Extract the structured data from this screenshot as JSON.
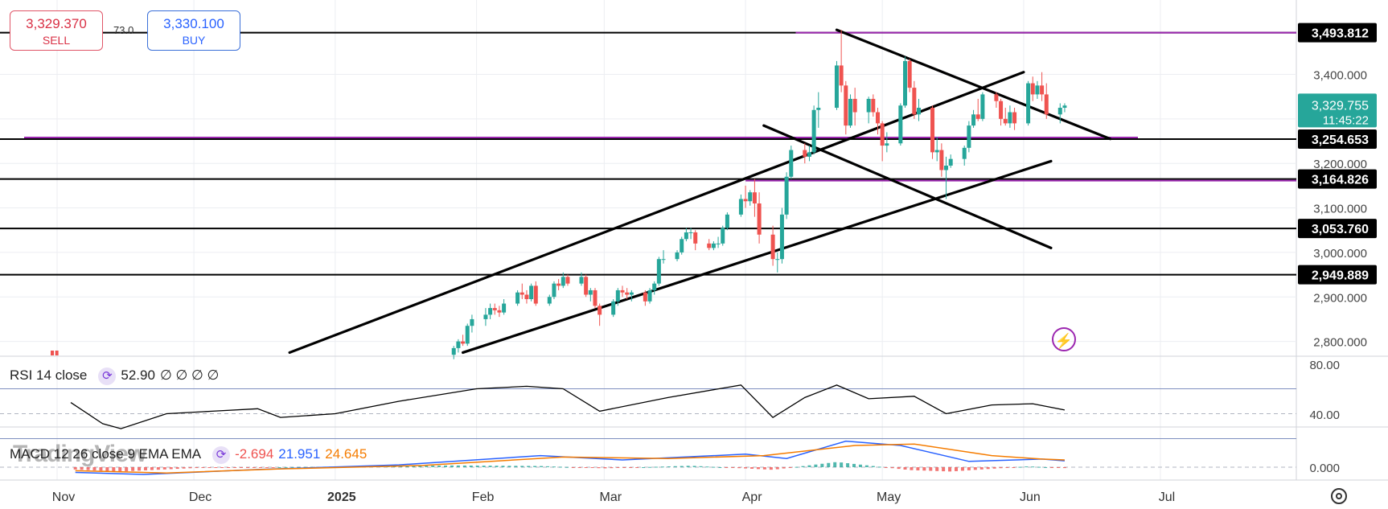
{
  "trade": {
    "sell_price": "3,329.370",
    "sell_label": "SELL",
    "buy_price": "3,330.100",
    "buy_label": "BUY",
    "spread": "73.0"
  },
  "colors": {
    "up": "#26a69a",
    "down": "#ef5350",
    "trendline": "#000000",
    "support": "#9c27b0",
    "rsi": "#000000",
    "macd": "#2962ff",
    "signal": "#f57c00"
  },
  "icons": [
    "cycle-icon",
    "lightning-icon",
    "settings-icon"
  ],
  "price_labels": [
    "3,493.812",
    "3,254.653",
    "3,164.826",
    "3,053.760",
    "2,949.889"
  ],
  "current": {
    "price": "3,329.755",
    "countdown": "11:45:22"
  },
  "rsi": {
    "label": "RSI 14 close",
    "value": "52.90",
    "placeholders": "∅ ∅ ∅ ∅",
    "axis": [
      "80.00",
      "40.00"
    ]
  },
  "macd": {
    "label": "MACD 12 26 close 9 EMA EMA",
    "hist": "-2.694",
    "macd": "21.951",
    "signal": "24.645",
    "axis": "0.000"
  },
  "watermark": "TradingView",
  "chart_data": {
    "type": "candlestick",
    "x": [
      "Nov",
      "Dec",
      "2025",
      "Feb",
      "Mar",
      "Apr",
      "May",
      "Jun",
      "Jul"
    ],
    "y_ticks": [
      3400,
      3300,
      3200,
      3100,
      3000,
      2900,
      2800
    ],
    "ylim": [
      2775,
      3525
    ],
    "horizontal_lines": [
      3493.812,
      3254.653,
      3164.826,
      3053.76,
      2949.889
    ],
    "grid": true,
    "ohlc": [
      [
        "2025-01-27",
        2770,
        2790,
        2760,
        2785
      ],
      [
        "2025-01-28",
        2785,
        2805,
        2775,
        2800
      ],
      [
        "2025-01-29",
        2800,
        2815,
        2790,
        2795
      ],
      [
        "2025-01-30",
        2795,
        2840,
        2790,
        2835
      ],
      [
        "2025-01-31",
        2835,
        2860,
        2820,
        2850
      ],
      [
        "2025-02-03",
        2850,
        2875,
        2835,
        2860
      ],
      [
        "2025-02-04",
        2860,
        2885,
        2850,
        2875
      ],
      [
        "2025-02-05",
        2875,
        2885,
        2860,
        2870
      ],
      [
        "2025-02-06",
        2870,
        2880,
        2855,
        2865
      ],
      [
        "2025-02-07",
        2865,
        2895,
        2860,
        2885
      ],
      [
        "2025-02-10",
        2885,
        2915,
        2880,
        2910
      ],
      [
        "2025-02-11",
        2910,
        2930,
        2895,
        2905
      ],
      [
        "2025-02-12",
        2905,
        2915,
        2885,
        2895
      ],
      [
        "2025-02-13",
        2895,
        2930,
        2890,
        2925
      ],
      [
        "2025-02-14",
        2925,
        2935,
        2880,
        2885
      ],
      [
        "2025-02-17",
        2885,
        2905,
        2880,
        2900
      ],
      [
        "2025-02-18",
        2900,
        2935,
        2895,
        2930
      ],
      [
        "2025-02-19",
        2930,
        2940,
        2915,
        2925
      ],
      [
        "2025-02-20",
        2925,
        2955,
        2920,
        2945
      ],
      [
        "2025-02-21",
        2945,
        2950,
        2925,
        2930
      ],
      [
        "2025-02-24",
        2930,
        2955,
        2925,
        2945
      ],
      [
        "2025-02-25",
        2945,
        2950,
        2900,
        2905
      ],
      [
        "2025-02-26",
        2905,
        2920,
        2890,
        2915
      ],
      [
        "2025-02-27",
        2915,
        2920,
        2875,
        2880
      ],
      [
        "2025-02-28",
        2880,
        2885,
        2835,
        2860
      ],
      [
        "2025-03-03",
        2860,
        2895,
        2855,
        2890
      ],
      [
        "2025-03-04",
        2890,
        2920,
        2880,
        2915
      ],
      [
        "2025-03-05",
        2915,
        2925,
        2900,
        2910
      ],
      [
        "2025-03-06",
        2910,
        2920,
        2895,
        2905
      ],
      [
        "2025-03-07",
        2905,
        2915,
        2890,
        2910
      ],
      [
        "2025-03-10",
        2910,
        2915,
        2880,
        2890
      ],
      [
        "2025-03-11",
        2890,
        2920,
        2885,
        2915
      ],
      [
        "2025-03-12",
        2915,
        2935,
        2905,
        2930
      ],
      [
        "2025-03-13",
        2930,
        2990,
        2925,
        2985
      ],
      [
        "2025-03-14",
        2985,
        3005,
        2975,
        2985
      ],
      [
        "2025-03-17",
        2985,
        3005,
        2980,
        3000
      ],
      [
        "2025-03-18",
        3000,
        3035,
        2995,
        3030
      ],
      [
        "2025-03-19",
        3030,
        3055,
        3025,
        3045
      ],
      [
        "2025-03-20",
        3045,
        3055,
        3030,
        3045
      ],
      [
        "2025-03-21",
        3045,
        3050,
        3005,
        3020
      ],
      [
        "2025-03-24",
        3020,
        3030,
        3005,
        3010
      ],
      [
        "2025-03-25",
        3010,
        3025,
        3005,
        3020
      ],
      [
        "2025-03-26",
        3020,
        3035,
        3010,
        3020
      ],
      [
        "2025-03-27",
        3020,
        3060,
        3015,
        3055
      ],
      [
        "2025-03-28",
        3055,
        3090,
        3050,
        3085
      ],
      [
        "2025-03-31",
        3085,
        3130,
        3080,
        3120
      ],
      [
        "2025-04-01",
        3120,
        3150,
        3100,
        3115
      ],
      [
        "2025-04-02",
        3115,
        3140,
        3105,
        3135
      ],
      [
        "2025-04-03",
        3135,
        3165,
        3080,
        3110
      ],
      [
        "2025-04-04",
        3110,
        3135,
        3020,
        3040
      ],
      [
        "2025-04-07",
        3040,
        3060,
        2970,
        2985
      ],
      [
        "2025-04-08",
        2985,
        3000,
        2955,
        2985
      ],
      [
        "2025-04-09",
        2985,
        3100,
        2975,
        3085
      ],
      [
        "2025-04-10",
        3085,
        3180,
        3075,
        3170
      ],
      [
        "2025-04-11",
        3170,
        3240,
        3165,
        3230
      ],
      [
        "2025-04-14",
        3230,
        3245,
        3200,
        3215
      ],
      [
        "2025-04-15",
        3215,
        3240,
        3205,
        3225
      ],
      [
        "2025-04-16",
        3225,
        3330,
        3220,
        3320
      ],
      [
        "2025-04-17",
        3320,
        3360,
        3280,
        3325
      ],
      [
        "2025-04-21",
        3325,
        3430,
        3320,
        3420
      ],
      [
        "2025-04-22",
        3420,
        3500,
        3360,
        3375
      ],
      [
        "2025-04-23",
        3375,
        3385,
        3265,
        3285
      ],
      [
        "2025-04-24",
        3285,
        3355,
        3280,
        3345
      ],
      [
        "2025-04-25",
        3345,
        3370,
        3285,
        3315
      ],
      [
        "2025-04-28",
        3315,
        3350,
        3290,
        3345
      ],
      [
        "2025-04-29",
        3345,
        3355,
        3305,
        3315
      ],
      [
        "2025-04-30",
        3315,
        3325,
        3265,
        3290
      ],
      [
        "2025-05-01",
        3290,
        3295,
        3205,
        3240
      ],
      [
        "2025-05-02",
        3240,
        3270,
        3225,
        3245
      ],
      [
        "2025-05-05",
        3245,
        3335,
        3240,
        3330
      ],
      [
        "2025-05-06",
        3330,
        3440,
        3325,
        3430
      ],
      [
        "2025-05-07",
        3430,
        3435,
        3360,
        3370
      ],
      [
        "2025-05-08",
        3370,
        3385,
        3300,
        3310
      ],
      [
        "2025-05-09",
        3310,
        3345,
        3295,
        3325
      ],
      [
        "2025-05-12",
        3325,
        3330,
        3210,
        3225
      ],
      [
        "2025-05-13",
        3225,
        3260,
        3205,
        3230
      ],
      [
        "2025-05-14",
        3230,
        3245,
        3170,
        3185
      ],
      [
        "2025-05-15",
        3185,
        3215,
        3120,
        3195
      ],
      [
        "2025-05-16",
        3195,
        3220,
        3190,
        3210
      ],
      [
        "2025-05-19",
        3210,
        3240,
        3195,
        3235
      ],
      [
        "2025-05-20",
        3235,
        3295,
        3225,
        3285
      ],
      [
        "2025-05-21",
        3285,
        3320,
        3280,
        3310
      ],
      [
        "2025-05-22",
        3310,
        3345,
        3295,
        3300
      ],
      [
        "2025-05-23",
        3300,
        3360,
        3295,
        3355
      ],
      [
        "2025-05-26",
        3355,
        3360,
        3325,
        3340
      ],
      [
        "2025-05-27",
        3340,
        3345,
        3285,
        3300
      ],
      [
        "2025-05-28",
        3300,
        3325,
        3285,
        3290
      ],
      [
        "2025-05-29",
        3290,
        3330,
        3280,
        3315
      ],
      [
        "2025-05-30",
        3315,
        3325,
        3275,
        3290
      ],
      [
        "2025-06-02",
        3290,
        3385,
        3285,
        3380
      ],
      [
        "2025-06-03",
        3380,
        3395,
        3340,
        3355
      ],
      [
        "2025-06-04",
        3355,
        3385,
        3345,
        3375
      ],
      [
        "2025-06-05",
        3375,
        3405,
        3340,
        3355
      ],
      [
        "2025-06-06",
        3355,
        3380,
        3300,
        3310
      ],
      [
        "2025-06-09",
        3310,
        3335,
        3290,
        3325
      ],
      [
        "2025-06-10",
        3325,
        3335,
        3315,
        3330
      ]
    ],
    "rsi": [
      [
        "2024-11-04",
        59
      ],
      [
        "2024-11-11",
        42
      ],
      [
        "2024-11-15",
        38
      ],
      [
        "2024-11-25",
        50
      ],
      [
        "2024-12-05",
        52
      ],
      [
        "2024-12-15",
        54
      ],
      [
        "2024-12-20",
        47
      ],
      [
        "2025-01-01",
        50
      ],
      [
        "2025-01-15",
        60
      ],
      [
        "2025-02-01",
        70
      ],
      [
        "2025-02-12",
        72
      ],
      [
        "2025-02-20",
        70
      ],
      [
        "2025-02-28",
        52
      ],
      [
        "2025-03-15",
        63
      ],
      [
        "2025-03-31",
        73
      ],
      [
        "2025-04-07",
        47
      ],
      [
        "2025-04-14",
        63
      ],
      [
        "2025-04-21",
        73
      ],
      [
        "2025-04-28",
        62
      ],
      [
        "2025-05-08",
        64
      ],
      [
        "2025-05-15",
        50
      ],
      [
        "2025-05-25",
        57
      ],
      [
        "2025-06-03",
        58
      ],
      [
        "2025-06-10",
        53
      ]
    ],
    "macd_hist": [
      [
        "2024-11-05",
        -8
      ],
      [
        "2024-11-15",
        -15
      ],
      [
        "2024-12-01",
        -3
      ],
      [
        "2025-01-01",
        2
      ],
      [
        "2025-01-27",
        6
      ],
      [
        "2025-02-15",
        4
      ],
      [
        "2025-03-01",
        -4
      ],
      [
        "2025-03-20",
        5
      ],
      [
        "2025-04-07",
        -9
      ],
      [
        "2025-04-21",
        18
      ],
      [
        "2025-05-07",
        -10
      ],
      [
        "2025-05-16",
        -15
      ],
      [
        "2025-06-02",
        3
      ],
      [
        "2025-06-10",
        -3
      ]
    ],
    "macd_line": [
      [
        "2024-11-05",
        -18
      ],
      [
        "2024-11-20",
        -25
      ],
      [
        "2024-12-15",
        -8
      ],
      [
        "2025-01-15",
        8
      ],
      [
        "2025-02-15",
        40
      ],
      [
        "2025-03-05",
        25
      ],
      [
        "2025-04-01",
        45
      ],
      [
        "2025-04-10",
        30
      ],
      [
        "2025-04-23",
        90
      ],
      [
        "2025-05-05",
        75
      ],
      [
        "2025-05-20",
        20
      ],
      [
        "2025-06-05",
        28
      ],
      [
        "2025-06-10",
        22
      ]
    ],
    "signal_line": [
      [
        "2024-11-05",
        -12
      ],
      [
        "2024-11-25",
        -20
      ],
      [
        "2024-12-20",
        -6
      ],
      [
        "2025-01-20",
        6
      ],
      [
        "2025-02-20",
        35
      ],
      [
        "2025-03-15",
        30
      ],
      [
        "2025-04-05",
        40
      ],
      [
        "2025-04-25",
        75
      ],
      [
        "2025-05-08",
        80
      ],
      [
        "2025-05-25",
        40
      ],
      [
        "2025-06-05",
        28
      ],
      [
        "2025-06-10",
        25
      ]
    ]
  }
}
